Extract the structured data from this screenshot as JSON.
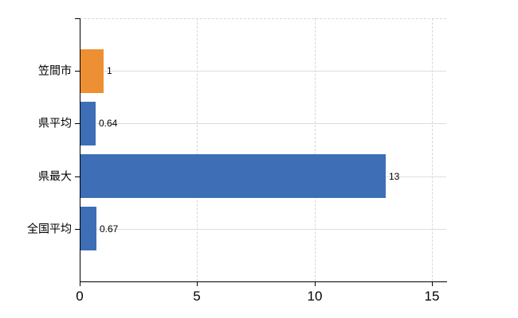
{
  "chart_data": {
    "type": "bar",
    "orientation": "horizontal",
    "categories": [
      "笠間市",
      "県平均",
      "県最大",
      "全国平均"
    ],
    "values": [
      1,
      0.64,
      13,
      0.67
    ],
    "value_labels": [
      "1",
      "0.64",
      "13",
      "0.67"
    ],
    "bar_colors": [
      "#ed8f33",
      "#3d6eb6",
      "#3d6eb6",
      "#3d6eb6"
    ],
    "x_tick_labels": [
      "0",
      "5",
      "10",
      "15"
    ],
    "x_tick_values": [
      0,
      5,
      10,
      15
    ],
    "xlim": [
      0,
      15.6
    ],
    "grid": {
      "vertical": "dashed",
      "horizontal": "solid"
    },
    "legend": false,
    "colors": {
      "orange": "#ed8f33",
      "blue": "#3d6eb6",
      "axis": "#000000",
      "horizontal_gridline": "#dbe0d7",
      "vertical_gridline": "#d7d7dd",
      "text": "#000000",
      "background": "#ffffff"
    }
  }
}
